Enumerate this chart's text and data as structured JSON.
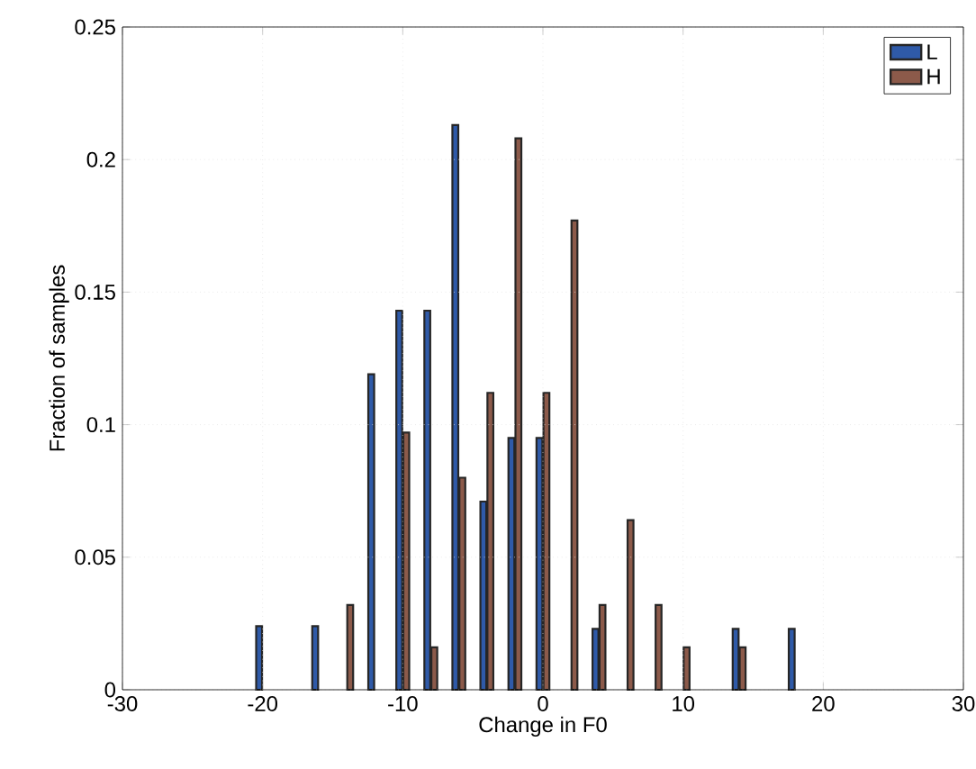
{
  "chart_data": {
    "type": "bar",
    "xlabel": "Change in F0",
    "ylabel": "Fraction of samples",
    "x": [
      -20,
      -18,
      -16,
      -14,
      -12,
      -10,
      -8,
      -6,
      -4,
      -2,
      0,
      2,
      4,
      6,
      8,
      10,
      12,
      14,
      16,
      18
    ],
    "series": [
      {
        "name": "L",
        "color": "#2f5aa8",
        "values": [
          0.024,
          null,
          0.024,
          null,
          0.119,
          0.143,
          0.143,
          0.213,
          0.071,
          0.095,
          0.095,
          null,
          0.023,
          null,
          null,
          null,
          null,
          0.023,
          null,
          0.023
        ]
      },
      {
        "name": "H",
        "color": "#8c5a4a",
        "values": [
          null,
          null,
          null,
          0.032,
          null,
          0.097,
          0.016,
          0.08,
          0.112,
          0.208,
          0.112,
          0.177,
          0.032,
          0.064,
          0.032,
          0.016,
          null,
          0.016,
          null,
          null
        ]
      }
    ],
    "xlim": [
      -30,
      30
    ],
    "xticks": [
      -30,
      -20,
      -10,
      0,
      10,
      20,
      30
    ],
    "ylim": [
      0,
      0.25
    ],
    "yticks": [
      0,
      0.05,
      0.1,
      0.15,
      0.2,
      0.25
    ],
    "grid": true,
    "legend": "top right"
  }
}
